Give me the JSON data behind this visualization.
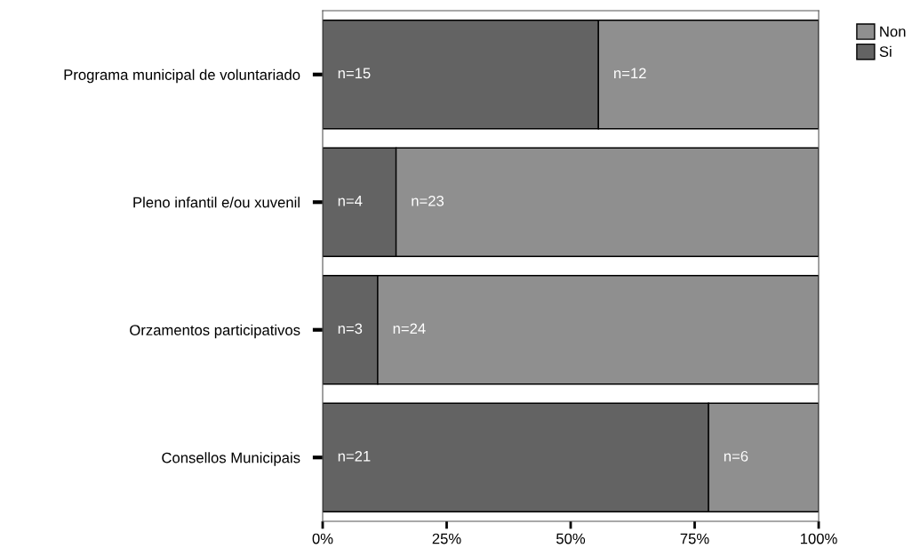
{
  "chart_data": {
    "type": "bar",
    "orientation": "horizontal",
    "stacked": true,
    "categories": [
      "Programa municipal de voluntariado",
      "Pleno infantil e/ou xuvenil",
      "Orzamentos participativos",
      "Consellos Municipais"
    ],
    "series": [
      {
        "name": "Si",
        "color": "#636363",
        "values": [
          55.6,
          14.8,
          11.1,
          77.8
        ]
      },
      {
        "name": "Non",
        "color": "#8f8f8f",
        "values": [
          44.4,
          85.2,
          88.9,
          22.2
        ]
      }
    ],
    "annotations": [
      {
        "text": "n=15",
        "x": 0,
        "y": "Programa municipal de voluntariado"
      },
      {
        "text": "n=12",
        "x": 55.6,
        "y": "Programa municipal de voluntariado"
      },
      {
        "text": "n=4",
        "x": 0,
        "y": "Pleno infantil e/ou xuvenil"
      },
      {
        "text": "n=23",
        "x": 14.8,
        "y": "Pleno infantil e/ou xuvenil"
      },
      {
        "text": "n=3",
        "x": 0,
        "y": "Orzamentos participativos"
      },
      {
        "text": "n=24",
        "x": 11.1,
        "y": "Orzamentos participativos"
      },
      {
        "text": "n=21",
        "x": 0,
        "y": "Consellos Municipais"
      },
      {
        "text": "n=6",
        "x": 77.8,
        "y": "Consellos Municipais"
      }
    ],
    "xlim": [
      0,
      100
    ],
    "xticks": [
      {
        "value": 0,
        "label": "0%"
      },
      {
        "value": 25,
        "label": "25%"
      },
      {
        "value": 50,
        "label": "50%"
      },
      {
        "value": 75,
        "label": "75%"
      },
      {
        "value": 100,
        "label": "100%"
      }
    ],
    "grid": false,
    "legend": "top right"
  }
}
